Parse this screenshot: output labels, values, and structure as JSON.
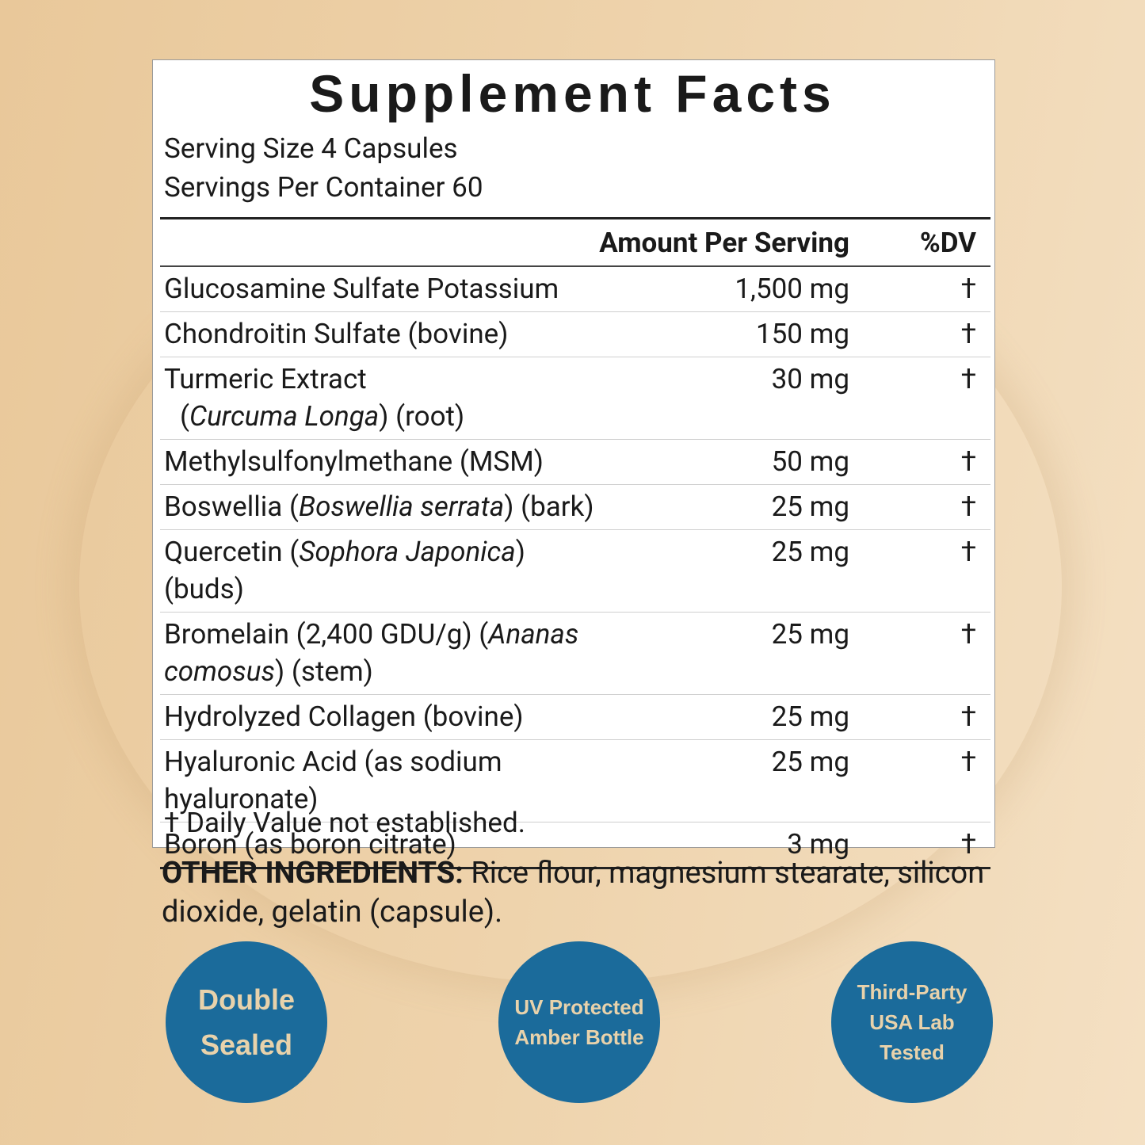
{
  "label": {
    "title": "Supplement Facts",
    "serving_size": "Serving Size 4 Capsules",
    "servings_per_container": "Servings Per Container 60",
    "header": {
      "amount": "Amount Per Serving",
      "dv": "%DV"
    },
    "rows": [
      {
        "name": [
          {
            "text": "Glucosamine Sulfate Potassium",
            "italic": false
          }
        ],
        "amount": "1,500 mg",
        "dv": "†"
      },
      {
        "name": [
          {
            "text": "Chondroitin Sulfate (bovine)",
            "italic": false
          }
        ],
        "amount": "150 mg",
        "dv": "†"
      },
      {
        "name": [
          {
            "text": "Turmeric Extract",
            "italic": false
          }
        ],
        "subname": [
          {
            "text": "(",
            "italic": false
          },
          {
            "text": "Curcuma Longa",
            "italic": true
          },
          {
            "text": ") (root)",
            "italic": false
          }
        ],
        "amount": "30 mg",
        "dv": "†"
      },
      {
        "name": [
          {
            "text": "Methylsulfonylmethane (MSM)",
            "italic": false
          }
        ],
        "amount": "50 mg",
        "dv": "†"
      },
      {
        "name": [
          {
            "text": "Boswellia (",
            "italic": false
          },
          {
            "text": "Boswellia serrata",
            "italic": true
          },
          {
            "text": ") (bark)",
            "italic": false
          }
        ],
        "amount": "25 mg",
        "dv": "†"
      },
      {
        "name": [
          {
            "text": "Quercetin (",
            "italic": false
          },
          {
            "text": "Sophora Japonica",
            "italic": true
          },
          {
            "text": ") (buds)",
            "italic": false
          }
        ],
        "amount": "25 mg",
        "dv": "†"
      },
      {
        "name": [
          {
            "text": "Bromelain (2,400 GDU/g) (",
            "italic": false
          },
          {
            "text": "Ananas comosus",
            "italic": true
          },
          {
            "text": ") (stem)",
            "italic": false
          }
        ],
        "amount": "25 mg",
        "dv": "†"
      },
      {
        "name": [
          {
            "text": "Hydrolyzed Collagen (bovine)",
            "italic": false
          }
        ],
        "amount": "25 mg",
        "dv": "†"
      },
      {
        "name": [
          {
            "text": "Hyaluronic Acid (as sodium hyaluronate)",
            "italic": false
          }
        ],
        "amount": "25 mg",
        "dv": "†"
      },
      {
        "name": [
          {
            "text": "Boron (as boron citrate)",
            "italic": false
          }
        ],
        "amount": "3 mg",
        "dv": "†"
      }
    ],
    "footnote": "† Daily Value not established."
  },
  "other_ingredients": {
    "heading": "OTHER INGREDIENTS:",
    "text": "Rice flour, magnesium stearate, silicon dioxide, gelatin (capsule)."
  },
  "badges": [
    {
      "lines": [
        "Double",
        "Sealed"
      ]
    },
    {
      "lines": [
        "UV Protected",
        "Amber Bottle"
      ]
    },
    {
      "lines": [
        "Third-Party",
        "USA Lab",
        "Tested"
      ]
    }
  ]
}
